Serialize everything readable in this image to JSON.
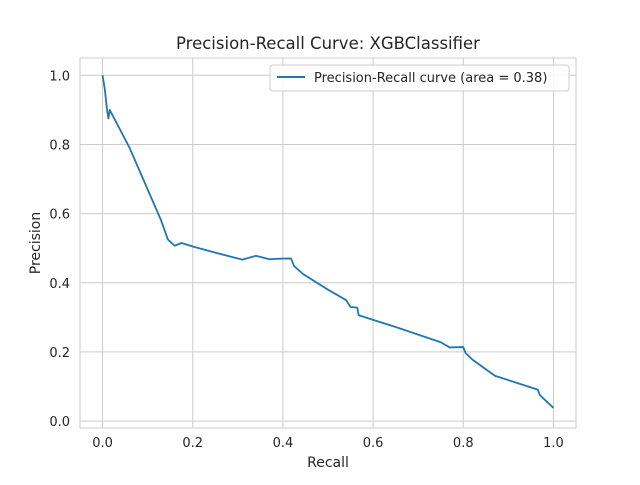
{
  "chart_data": {
    "type": "line",
    "title": "Precision-Recall Curve: XGBClassifier",
    "xlabel": "Recall",
    "ylabel": "Precision",
    "xlim": [
      -0.05,
      1.05
    ],
    "ylim": [
      -0.02,
      1.05
    ],
    "xticks": [
      0.0,
      0.2,
      0.4,
      0.6,
      0.8,
      1.0
    ],
    "xtick_labels": [
      "0.0",
      "0.2",
      "0.4",
      "0.6",
      "0.8",
      "1.0"
    ],
    "yticks": [
      0.0,
      0.2,
      0.4,
      0.6,
      0.8,
      1.0
    ],
    "ytick_labels": [
      "0.0",
      "0.2",
      "0.4",
      "0.6",
      "0.8",
      "1.0"
    ],
    "grid": true,
    "legend_position": "top-right",
    "series": [
      {
        "name": "Precision-Recall curve (area = 0.38)",
        "color": "#1f77b4",
        "points": [
          [
            0.0,
            1.0
          ],
          [
            0.005,
            0.96
          ],
          [
            0.01,
            0.9
          ],
          [
            0.013,
            0.875
          ],
          [
            0.016,
            0.9
          ],
          [
            0.03,
            0.865
          ],
          [
            0.06,
            0.79
          ],
          [
            0.1,
            0.67
          ],
          [
            0.13,
            0.58
          ],
          [
            0.145,
            0.525
          ],
          [
            0.16,
            0.507
          ],
          [
            0.175,
            0.515
          ],
          [
            0.2,
            0.505
          ],
          [
            0.25,
            0.487
          ],
          [
            0.31,
            0.467
          ],
          [
            0.34,
            0.478
          ],
          [
            0.37,
            0.468
          ],
          [
            0.4,
            0.47
          ],
          [
            0.418,
            0.47
          ],
          [
            0.425,
            0.448
          ],
          [
            0.445,
            0.425
          ],
          [
            0.5,
            0.38
          ],
          [
            0.54,
            0.35
          ],
          [
            0.55,
            0.33
          ],
          [
            0.565,
            0.328
          ],
          [
            0.568,
            0.306
          ],
          [
            0.65,
            0.272
          ],
          [
            0.75,
            0.228
          ],
          [
            0.77,
            0.213
          ],
          [
            0.8,
            0.214
          ],
          [
            0.805,
            0.197
          ],
          [
            0.82,
            0.178
          ],
          [
            0.87,
            0.131
          ],
          [
            0.965,
            0.091
          ],
          [
            0.97,
            0.075
          ],
          [
            1.0,
            0.038
          ]
        ]
      }
    ]
  }
}
